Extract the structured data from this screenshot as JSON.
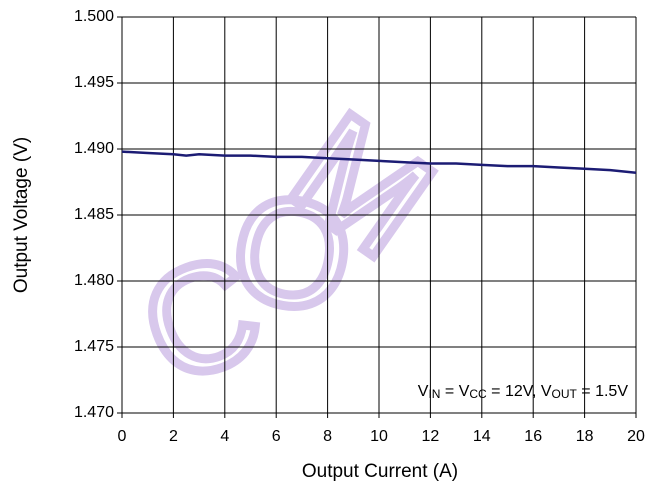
{
  "chart_data": {
    "type": "line",
    "x_label": "Output Current (A)",
    "y_label": "Output Voltage (V)",
    "x": [
      0,
      1,
      2,
      2.5,
      3,
      4,
      5,
      6,
      7,
      8,
      9,
      10,
      11,
      12,
      13,
      14,
      15,
      16,
      17,
      18,
      19,
      20
    ],
    "series": [
      {
        "color": "#1c1c74",
        "values": [
          1.4898,
          1.4897,
          1.4896,
          1.4895,
          1.4896,
          1.4895,
          1.4895,
          1.4894,
          1.4894,
          1.4893,
          1.4892,
          1.4891,
          1.489,
          1.4889,
          1.4889,
          1.4888,
          1.4887,
          1.4887,
          1.4886,
          1.4885,
          1.4884,
          1.4882
        ]
      }
    ],
    "xlim": [
      0,
      20
    ],
    "xticks": [
      0,
      2,
      4,
      6,
      8,
      10,
      12,
      14,
      16,
      18,
      20
    ],
    "ylim": [
      1.47,
      1.5
    ],
    "yticks": [
      {
        "value": 1.47,
        "label": "1.470"
      },
      1.475,
      {
        "value": 1.48,
        "label": "1.480"
      },
      1.485,
      {
        "value": 1.49,
        "label": "1.490"
      },
      1.495,
      {
        "value": 1.5,
        "label": "1.500"
      }
    ],
    "grid": true,
    "annotation": [
      {
        "text": "V",
        "sub": false
      },
      {
        "text": "IN",
        "sub": true
      },
      {
        "text": " = V",
        "sub": false
      },
      {
        "text": "CC",
        "sub": true
      },
      {
        "text": " = 12V, V",
        "sub": false
      },
      {
        "text": "OUT",
        "sub": true
      },
      {
        "text": " = 1.5V",
        "sub": false
      }
    ],
    "watermark": [
      "C",
      "O",
      "M"
    ]
  }
}
